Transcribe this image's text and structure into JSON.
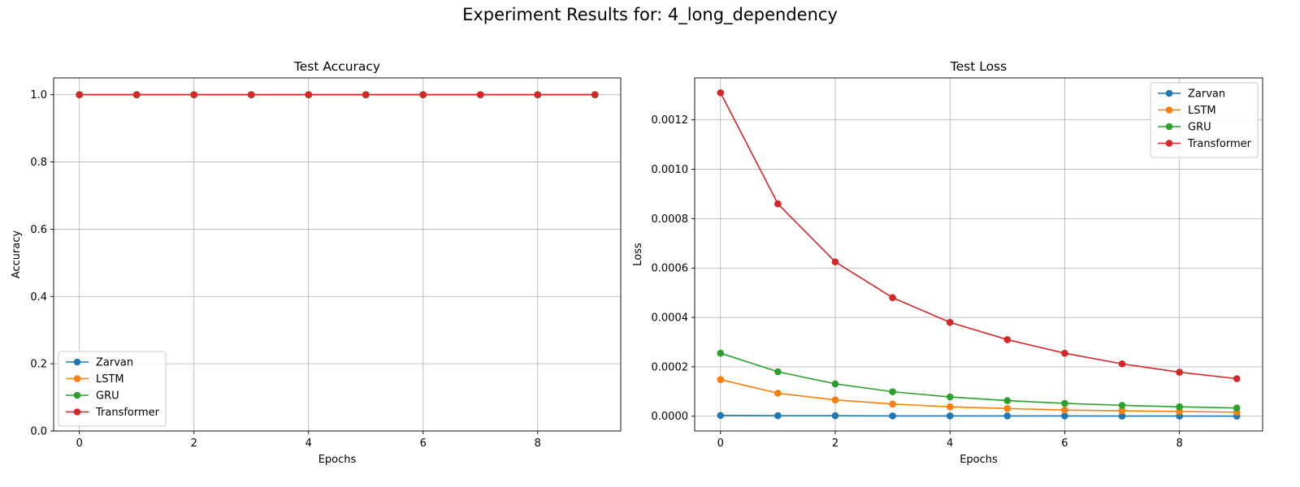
{
  "figure_title": "Experiment Results for: 4_long_dependency",
  "chart_data": [
    {
      "type": "line",
      "title": "Test Accuracy",
      "xlabel": "Epochs",
      "ylabel": "Accuracy",
      "x": [
        0,
        1,
        2,
        3,
        4,
        5,
        6,
        7,
        8,
        9
      ],
      "xlim": [
        -0.45,
        9.45
      ],
      "ylim": [
        0.0,
        1.05
      ],
      "xticks": [
        0,
        2,
        4,
        6,
        8
      ],
      "xtick_labels": [
        "0",
        "2",
        "4",
        "6",
        "8"
      ],
      "yticks": [
        0.0,
        0.2,
        0.4,
        0.6,
        0.8,
        1.0
      ],
      "ytick_labels": [
        "0.0",
        "0.2",
        "0.4",
        "0.6",
        "0.8",
        "1.0"
      ],
      "grid": true,
      "legend_position": "lower-left",
      "series": [
        {
          "name": "Zarvan",
          "color": "#1f77b4",
          "values": [
            1.0,
            1.0,
            1.0,
            1.0,
            1.0,
            1.0,
            1.0,
            1.0,
            1.0,
            1.0
          ]
        },
        {
          "name": "LSTM",
          "color": "#ff7f0e",
          "values": [
            1.0,
            1.0,
            1.0,
            1.0,
            1.0,
            1.0,
            1.0,
            1.0,
            1.0,
            1.0
          ]
        },
        {
          "name": "GRU",
          "color": "#2ca02c",
          "values": [
            1.0,
            1.0,
            1.0,
            1.0,
            1.0,
            1.0,
            1.0,
            1.0,
            1.0,
            1.0
          ]
        },
        {
          "name": "Transformer",
          "color": "#d62728",
          "values": [
            1.0,
            1.0,
            1.0,
            1.0,
            1.0,
            1.0,
            1.0,
            1.0,
            1.0,
            1.0
          ]
        }
      ]
    },
    {
      "type": "line",
      "title": "Test Loss",
      "xlabel": "Epochs",
      "ylabel": "Loss",
      "x": [
        0,
        1,
        2,
        3,
        4,
        5,
        6,
        7,
        8,
        9
      ],
      "xlim": [
        -0.45,
        9.45
      ],
      "ylim": [
        -6e-05,
        0.00137
      ],
      "xticks": [
        0,
        2,
        4,
        6,
        8
      ],
      "xtick_labels": [
        "0",
        "2",
        "4",
        "6",
        "8"
      ],
      "yticks": [
        0.0,
        0.0002,
        0.0004,
        0.0006,
        0.0008,
        0.001,
        0.0012
      ],
      "ytick_labels": [
        "0.0000",
        "0.0002",
        "0.0004",
        "0.0006",
        "0.0008",
        "0.0010",
        "0.0012"
      ],
      "grid": true,
      "legend_position": "upper-right",
      "series": [
        {
          "name": "Zarvan",
          "color": "#1f77b4",
          "values": [
            3e-06,
            2e-06,
            2e-06,
            1e-06,
            1e-06,
            1e-06,
            1e-06,
            5e-07,
            5e-07,
            3e-07
          ]
        },
        {
          "name": "LSTM",
          "color": "#ff7f0e",
          "values": [
            0.000148,
            9.3e-05,
            6.6e-05,
            4.9e-05,
            3.8e-05,
            3.1e-05,
            2.5e-05,
            2.2e-05,
            1.9e-05,
            1.6e-05
          ]
        },
        {
          "name": "GRU",
          "color": "#2ca02c",
          "values": [
            0.000255,
            0.00018,
            0.000131,
            9.9e-05,
            7.8e-05,
            6.3e-05,
            5.2e-05,
            4.4e-05,
            3.8e-05,
            3.3e-05
          ]
        },
        {
          "name": "Transformer",
          "color": "#d62728",
          "values": [
            0.00131,
            0.00086,
            0.000625,
            0.00048,
            0.00038,
            0.00031,
            0.000255,
            0.000212,
            0.000178,
            0.000152
          ]
        }
      ]
    }
  ]
}
